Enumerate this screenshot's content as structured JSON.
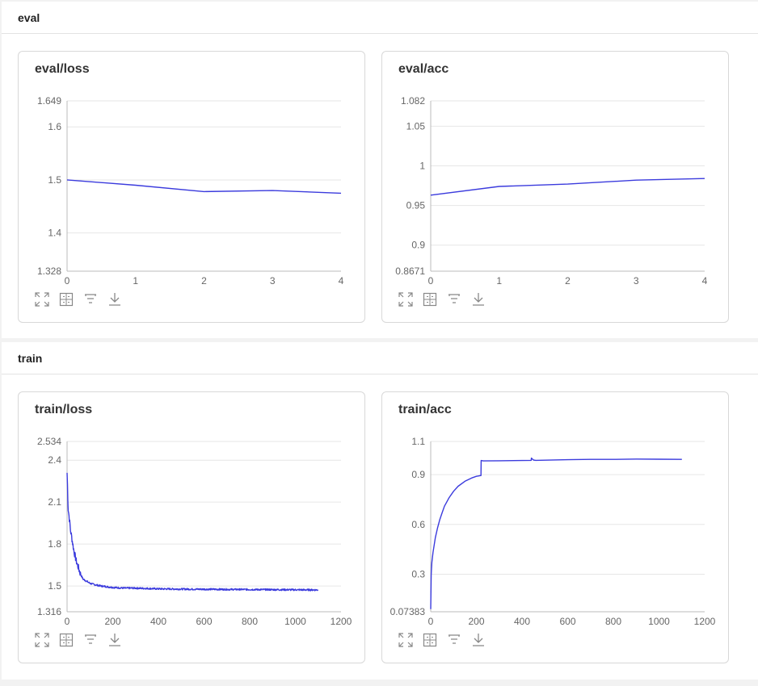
{
  "groups": [
    {
      "label": "eval"
    },
    {
      "label": "train"
    }
  ],
  "toolbar_icons": [
    "expand-icon",
    "fit-view-icon",
    "filter-icon",
    "download-icon"
  ],
  "colors": {
    "line": "#3b3bdd",
    "grid": "#e6e6e6",
    "axis": "#bbbbbb"
  },
  "chart_data": [
    {
      "id": "eval-loss",
      "type": "line",
      "title": "eval/loss",
      "x": [
        0,
        1,
        2,
        3,
        4
      ],
      "y": [
        1.5,
        1.49,
        1.478,
        1.48,
        1.475
      ],
      "xlim": [
        0,
        4
      ],
      "ylim": [
        1.328,
        1.649
      ],
      "xticks": [
        "0",
        "1",
        "2",
        "3",
        "4"
      ],
      "yticks": [
        "1.328",
        "1.4",
        "1.5",
        "1.6",
        "1.649"
      ],
      "grid": true
    },
    {
      "id": "eval-acc",
      "type": "line",
      "title": "eval/acc",
      "x": [
        0,
        1,
        2,
        3,
        4
      ],
      "y": [
        0.963,
        0.974,
        0.977,
        0.982,
        0.984
      ],
      "xlim": [
        0,
        4
      ],
      "ylim": [
        0.8671,
        1.082
      ],
      "xticks": [
        "0",
        "1",
        "2",
        "3",
        "4"
      ],
      "yticks": [
        "0.8671",
        "0.9",
        "0.95",
        "1",
        "1.05",
        "1.082"
      ],
      "grid": true
    },
    {
      "id": "train-loss",
      "type": "line",
      "title": "train/loss",
      "x": [
        0,
        5,
        10,
        15,
        20,
        30,
        40,
        50,
        60,
        70,
        80,
        100,
        120,
        150,
        200,
        250,
        300,
        400,
        500,
        600,
        700,
        800,
        900,
        1000,
        1100
      ],
      "y": [
        2.31,
        2.05,
        1.98,
        1.9,
        1.85,
        1.75,
        1.68,
        1.63,
        1.58,
        1.55,
        1.54,
        1.52,
        1.51,
        1.5,
        1.49,
        1.485,
        1.485,
        1.48,
        1.478,
        1.477,
        1.476,
        1.475,
        1.474,
        1.473,
        1.472
      ],
      "noise": 0.006,
      "xlim": [
        0,
        1200
      ],
      "ylim": [
        1.316,
        2.534
      ],
      "xticks": [
        "0",
        "200",
        "400",
        "600",
        "800",
        "1000",
        "1200"
      ],
      "yticks": [
        "1.316",
        "1.5",
        "1.8",
        "2.1",
        "2.4",
        "2.534"
      ],
      "grid": true
    },
    {
      "id": "train-acc",
      "type": "line",
      "title": "train/acc",
      "x": [
        0,
        2,
        5,
        10,
        20,
        30,
        40,
        50,
        60,
        80,
        100,
        120,
        150,
        180,
        200,
        220,
        221,
        230,
        300,
        400,
        440,
        441,
        450,
        460,
        600,
        700,
        800,
        900,
        1000,
        1100
      ],
      "y": [
        0.09,
        0.3,
        0.37,
        0.43,
        0.52,
        0.58,
        0.63,
        0.67,
        0.71,
        0.76,
        0.8,
        0.83,
        0.86,
        0.88,
        0.89,
        0.895,
        0.985,
        0.983,
        0.984,
        0.985,
        0.986,
        1.0,
        0.988,
        0.986,
        0.99,
        0.992,
        0.992,
        0.994,
        0.993,
        0.992
      ],
      "noise": 0,
      "xlim": [
        0,
        1200
      ],
      "ylim": [
        0.07383,
        1.1
      ],
      "xticks": [
        "0",
        "200",
        "400",
        "600",
        "800",
        "1000",
        "1200"
      ],
      "yticks": [
        "0.07383",
        "0.3",
        "0.6",
        "0.9",
        "1.1"
      ],
      "grid": true
    }
  ]
}
